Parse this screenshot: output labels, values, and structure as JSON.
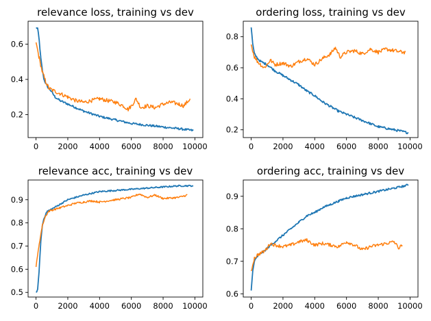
{
  "chart_data": [
    {
      "type": "line",
      "title": "relevance loss, training vs dev",
      "xlim": [
        -500,
        10500
      ],
      "ylim": [
        0.07,
        0.73
      ],
      "xticks": [
        0,
        2000,
        4000,
        6000,
        8000,
        10000
      ],
      "xtick_labels": [
        "0",
        "2000",
        "4000",
        "6000",
        "8000",
        "10000"
      ],
      "yticks": [
        0.2,
        0.4,
        0.6
      ],
      "ytick_labels": [
        "0.2",
        "0.4",
        "0.6"
      ],
      "grid": false,
      "series": [
        {
          "color": "#1f77b4",
          "noise": 0.006,
          "x": [
            0,
            100,
            200,
            300,
            400,
            500,
            700,
            900,
            1200,
            1500,
            2000,
            2500,
            3000,
            4000,
            5000,
            6000,
            7000,
            8000,
            9000,
            9900
          ],
          "y": [
            0.69,
            0.69,
            0.62,
            0.52,
            0.45,
            0.4,
            0.36,
            0.34,
            0.3,
            0.28,
            0.26,
            0.24,
            0.22,
            0.19,
            0.17,
            0.15,
            0.14,
            0.13,
            0.12,
            0.11
          ]
        },
        {
          "color": "#ff7f0e",
          "noise": 0.011,
          "x": [
            0,
            200,
            400,
            600,
            800,
            1000,
            1500,
            2000,
            2500,
            3000,
            3500,
            4000,
            4500,
            5000,
            5500,
            5800,
            6000,
            6300,
            6600,
            7000,
            7500,
            8000,
            8500,
            9000,
            9300,
            9500,
            9700
          ],
          "y": [
            0.61,
            0.52,
            0.44,
            0.39,
            0.35,
            0.34,
            0.32,
            0.3,
            0.28,
            0.27,
            0.28,
            0.29,
            0.28,
            0.27,
            0.25,
            0.23,
            0.25,
            0.29,
            0.24,
            0.25,
            0.24,
            0.26,
            0.27,
            0.26,
            0.25,
            0.27,
            0.29
          ]
        }
      ]
    },
    {
      "type": "line",
      "title": "ordering loss, training vs dev",
      "xlim": [
        -500,
        10500
      ],
      "ylim": [
        0.15,
        0.9
      ],
      "xticks": [
        0,
        2000,
        4000,
        6000,
        8000,
        10000
      ],
      "xtick_labels": [
        "0",
        "2000",
        "4000",
        "6000",
        "8000",
        "10000"
      ],
      "yticks": [
        0.2,
        0.4,
        0.6,
        0.8
      ],
      "ytick_labels": [
        "0.2",
        "0.4",
        "0.6",
        "0.8"
      ],
      "grid": false,
      "series": [
        {
          "color": "#1f77b4",
          "noise": 0.007,
          "x": [
            0,
            100,
            200,
            400,
            600,
            800,
            1000,
            1500,
            2000,
            2500,
            3000,
            3500,
            4000,
            4500,
            5000,
            5500,
            6000,
            6500,
            7000,
            7500,
            8000,
            8500,
            9000,
            9500,
            9900
          ],
          "y": [
            0.86,
            0.75,
            0.69,
            0.66,
            0.64,
            0.63,
            0.62,
            0.58,
            0.55,
            0.52,
            0.49,
            0.45,
            0.42,
            0.38,
            0.35,
            0.32,
            0.3,
            0.28,
            0.26,
            0.24,
            0.22,
            0.21,
            0.2,
            0.19,
            0.18
          ]
        },
        {
          "color": "#ff7f0e",
          "noise": 0.012,
          "x": [
            0,
            200,
            400,
            600,
            800,
            1000,
            1200,
            1500,
            2000,
            2500,
            3000,
            3500,
            4000,
            4500,
            5000,
            5300,
            5600,
            6000,
            6500,
            7000,
            7500,
            8000,
            8500,
            9000,
            9500,
            9700
          ],
          "y": [
            0.75,
            0.67,
            0.64,
            0.62,
            0.6,
            0.62,
            0.65,
            0.62,
            0.63,
            0.61,
            0.64,
            0.66,
            0.62,
            0.66,
            0.69,
            0.73,
            0.67,
            0.7,
            0.71,
            0.69,
            0.72,
            0.7,
            0.72,
            0.71,
            0.7,
            0.7
          ]
        }
      ]
    },
    {
      "type": "line",
      "title": "relevance acc, training vs dev",
      "xlim": [
        -500,
        10500
      ],
      "ylim": [
        0.48,
        0.985
      ],
      "xticks": [
        0,
        2000,
        4000,
        6000,
        8000,
        10000
      ],
      "xtick_labels": [
        "0",
        "2000",
        "4000",
        "6000",
        "8000",
        "10000"
      ],
      "yticks": [
        0.5,
        0.6,
        0.7,
        0.8,
        0.9
      ],
      "ytick_labels": [
        "0.5",
        "0.6",
        "0.7",
        "0.8",
        "0.9"
      ],
      "grid": false,
      "series": [
        {
          "color": "#1f77b4",
          "noise": 0.003,
          "x": [
            0,
            100,
            200,
            300,
            400,
            500,
            700,
            1000,
            1500,
            2000,
            2500,
            3000,
            4000,
            5000,
            6000,
            7000,
            8000,
            9000,
            9900
          ],
          "y": [
            0.5,
            0.51,
            0.6,
            0.72,
            0.79,
            0.82,
            0.85,
            0.86,
            0.88,
            0.9,
            0.91,
            0.92,
            0.935,
            0.94,
            0.945,
            0.95,
            0.955,
            0.96,
            0.96
          ]
        },
        {
          "color": "#ff7f0e",
          "noise": 0.004,
          "x": [
            0,
            200,
            400,
            600,
            800,
            1000,
            1500,
            2000,
            2500,
            3000,
            3500,
            4000,
            5000,
            6000,
            6500,
            7000,
            7500,
            8000,
            9000,
            9500
          ],
          "y": [
            0.61,
            0.71,
            0.79,
            0.83,
            0.85,
            0.855,
            0.865,
            0.875,
            0.885,
            0.89,
            0.895,
            0.89,
            0.9,
            0.91,
            0.925,
            0.91,
            0.92,
            0.905,
            0.91,
            0.92
          ]
        }
      ]
    },
    {
      "type": "line",
      "title": "ordering acc, training vs dev",
      "xlim": [
        -500,
        10500
      ],
      "ylim": [
        0.59,
        0.95
      ],
      "xticks": [
        0,
        2000,
        4000,
        6000,
        8000,
        10000
      ],
      "xtick_labels": [
        "0",
        "2000",
        "4000",
        "6000",
        "8000",
        "10000"
      ],
      "yticks": [
        0.6,
        0.7,
        0.8,
        0.9
      ],
      "ytick_labels": [
        "0.6",
        "0.7",
        "0.8",
        "0.9"
      ],
      "grid": false,
      "series": [
        {
          "color": "#1f77b4",
          "noise": 0.003,
          "x": [
            0,
            100,
            200,
            400,
            600,
            800,
            1000,
            1500,
            2000,
            2500,
            3000,
            3500,
            4000,
            4500,
            5000,
            5500,
            6000,
            6500,
            7000,
            7500,
            8000,
            8500,
            9000,
            9500,
            9900
          ],
          "y": [
            0.61,
            0.67,
            0.7,
            0.715,
            0.725,
            0.73,
            0.74,
            0.76,
            0.78,
            0.8,
            0.82,
            0.84,
            0.85,
            0.865,
            0.875,
            0.885,
            0.895,
            0.9,
            0.905,
            0.91,
            0.915,
            0.92,
            0.925,
            0.93,
            0.935
          ]
        },
        {
          "color": "#ff7f0e",
          "noise": 0.005,
          "x": [
            0,
            200,
            400,
            600,
            800,
            1000,
            1200,
            1500,
            2000,
            2500,
            3000,
            3500,
            4000,
            4500,
            5000,
            5500,
            6000,
            6500,
            7000,
            7500,
            8000,
            8500,
            9000,
            9300,
            9500
          ],
          "y": [
            0.67,
            0.71,
            0.72,
            0.725,
            0.73,
            0.74,
            0.755,
            0.75,
            0.745,
            0.75,
            0.76,
            0.765,
            0.75,
            0.755,
            0.75,
            0.745,
            0.76,
            0.75,
            0.735,
            0.745,
            0.75,
            0.755,
            0.76,
            0.74,
            0.75
          ]
        }
      ]
    }
  ]
}
